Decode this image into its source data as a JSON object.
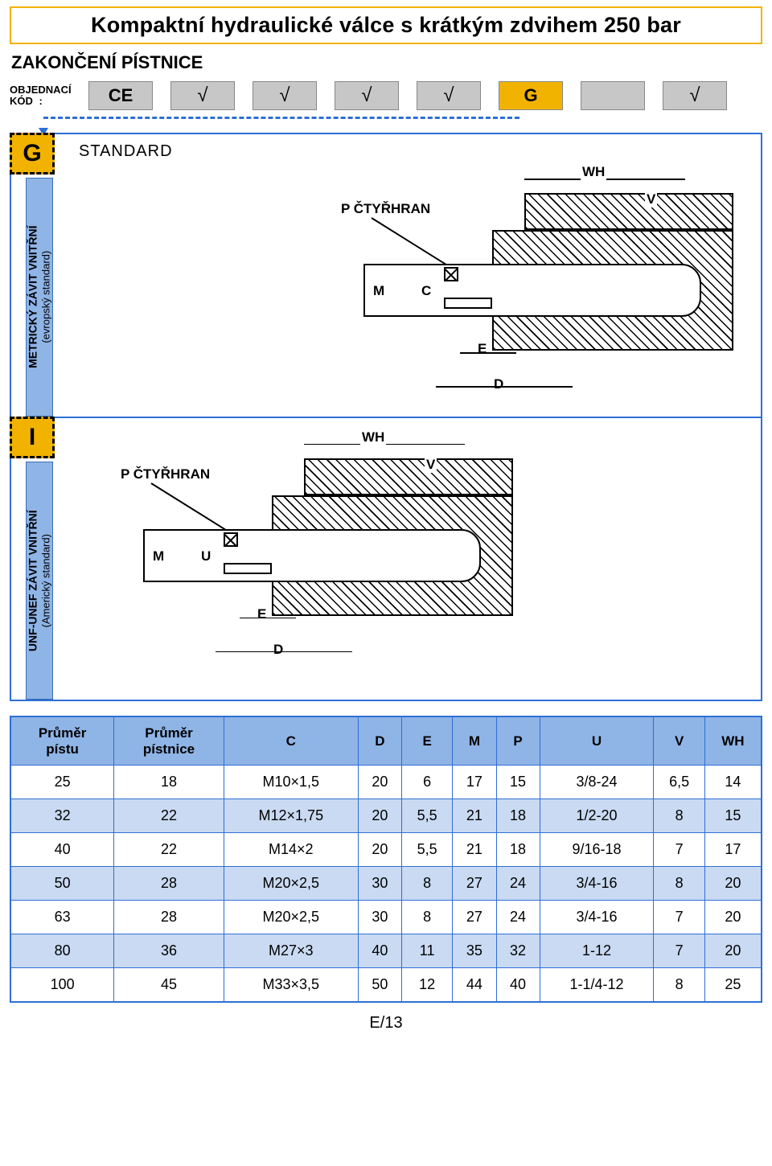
{
  "title": "Kompaktní hydraulické válce s krátkým zdvihem 250 bar",
  "section_heading": "ZAKONČENÍ PÍSTNICE",
  "order_label_line1": "OBJEDNACÍ",
  "order_label_line2": "KÓD",
  "order_colon": ":",
  "code_slots": [
    {
      "text": "CE",
      "tick": false,
      "highlight": false
    },
    {
      "text": "",
      "tick": true,
      "highlight": false
    },
    {
      "text": "",
      "tick": true,
      "highlight": false
    },
    {
      "text": "",
      "tick": true,
      "highlight": false
    },
    {
      "text": "",
      "tick": true,
      "highlight": false
    },
    {
      "text": "G",
      "tick": false,
      "highlight": true
    },
    {
      "text": "",
      "tick": false,
      "highlight": false
    },
    {
      "text": "",
      "tick": true,
      "highlight": false
    }
  ],
  "panels": [
    {
      "tag": "G",
      "rail_label_main": "METRICKÝ ZÁVIT VNITŘNÍ",
      "rail_label_sub": "(evropský standard)",
      "title": "STANDARD",
      "drawing_labels": {
        "P": "P ČTYŘHRAN",
        "M": "M",
        "C": "C",
        "E": "E",
        "D": "D",
        "V": "V",
        "WH": "WH"
      },
      "drawing_align": "right"
    },
    {
      "tag": "I",
      "rail_label_main": "UNF-UNEF ZÁVIT VNITŘNÍ",
      "rail_label_sub": "(Americký standard)",
      "title": "",
      "drawing_labels": {
        "P": "P ČTYŘHRAN",
        "M": "M",
        "C": "U",
        "E": "E",
        "D": "D",
        "V": "V",
        "WH": "WH"
      },
      "drawing_align": "left"
    }
  ],
  "table": {
    "headers": [
      "Průměr\npístu",
      "Průměr\npístnice",
      "C",
      "D",
      "E",
      "M",
      "P",
      "U",
      "V",
      "WH"
    ],
    "rows": [
      [
        "25",
        "18",
        "M10×1,5",
        "20",
        "6",
        "17",
        "15",
        "3/8-24",
        "6,5",
        "14"
      ],
      [
        "32",
        "22",
        "M12×1,75",
        "20",
        "5,5",
        "21",
        "18",
        "1/2-20",
        "8",
        "15"
      ],
      [
        "40",
        "22",
        "M14×2",
        "20",
        "5,5",
        "21",
        "18",
        "9/16-18",
        "7",
        "17"
      ],
      [
        "50",
        "28",
        "M20×2,5",
        "30",
        "8",
        "27",
        "24",
        "3/4-16",
        "8",
        "20"
      ],
      [
        "63",
        "28",
        "M20×2,5",
        "30",
        "8",
        "27",
        "24",
        "3/4-16",
        "7",
        "20"
      ],
      [
        "80",
        "36",
        "M27×3",
        "40",
        "11",
        "35",
        "32",
        "1-12",
        "7",
        "20"
      ],
      [
        "100",
        "45",
        "M33×3,5",
        "50",
        "12",
        "44",
        "40",
        "1-1/4-12",
        "8",
        "25"
      ]
    ],
    "alt_row_bg": "#c9daf2",
    "header_bg": "#8fb4e6",
    "border_color": "#2e6fd6"
  },
  "page_number": "E/13",
  "colors": {
    "accent_gold": "#f2b200",
    "accent_blue": "#2e6fd6",
    "panel_blue": "#8fb4e6",
    "slot_gray": "#c7c7c7"
  }
}
